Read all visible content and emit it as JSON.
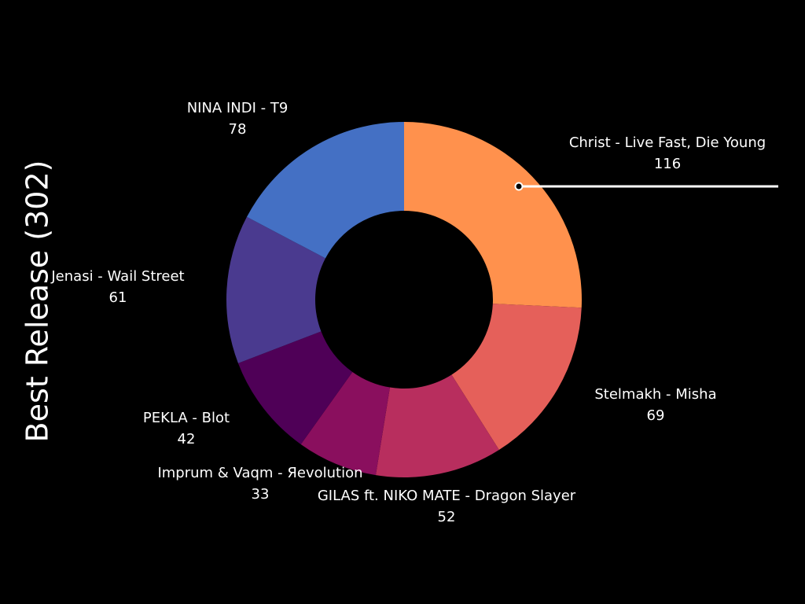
{
  "chart_data": {
    "type": "donut",
    "title": "Best Release (302)",
    "categories": [
      "Christ - Live Fast, Die Young",
      "Stelmakh - Misha",
      "GILAS ft. NIKO MATE - Dragon Slayer",
      "Imprum & Vaqm - Яevolution",
      "PEKLA - Blot",
      "Jenasi - Wail Street",
      "NINA INDI - T9"
    ],
    "values": [
      116,
      69,
      52,
      33,
      42,
      61,
      78
    ],
    "colors": [
      "#ff914d",
      "#e5605a",
      "#b82e5e",
      "#8a0f5e",
      "#4f0057",
      "#4a3a8f",
      "#4470c4"
    ]
  }
}
